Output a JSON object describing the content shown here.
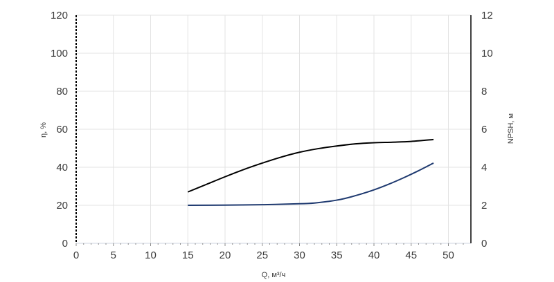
{
  "chart_data": {
    "type": "line",
    "xlabel": "Q, м³/ч",
    "ylabel_left": "η, %",
    "ylabel_right": "NPSH, м",
    "xlim": [
      0,
      53
    ],
    "ylim_left": [
      0,
      120
    ],
    "ylim_right": [
      0,
      12
    ],
    "x_ticks": [
      "0",
      "5",
      "10",
      "15",
      "20",
      "25",
      "30",
      "35",
      "40",
      "45",
      "50"
    ],
    "y_left_ticks": [
      "0",
      "20",
      "40",
      "60",
      "80",
      "100",
      "120"
    ],
    "y_right_ticks": [
      "0",
      "2",
      "4",
      "6",
      "8",
      "10",
      "12"
    ],
    "grid": true,
    "series": [
      {
        "axis": "left",
        "color": "#000000",
        "x": [
          15,
          17.5,
          20,
          22.5,
          25,
          27.5,
          30,
          32.5,
          35,
          37.5,
          40,
          42.5,
          45,
          48
        ],
        "y": [
          27,
          31,
          35,
          38.8,
          42.2,
          45.3,
          47.9,
          49.8,
          51.2,
          52.3,
          52.9,
          53.2,
          53.6,
          54.6
        ]
      },
      {
        "axis": "left",
        "color": "#1f3a70",
        "x": [
          15,
          20,
          25,
          30,
          32,
          34,
          35,
          36,
          38,
          40,
          42,
          44,
          46,
          48
        ],
        "y": [
          20,
          20.1,
          20.3,
          20.8,
          21.2,
          22.1,
          22.7,
          23.5,
          25.6,
          28.1,
          31.1,
          34.5,
          38.2,
          42.2
        ]
      }
    ]
  }
}
